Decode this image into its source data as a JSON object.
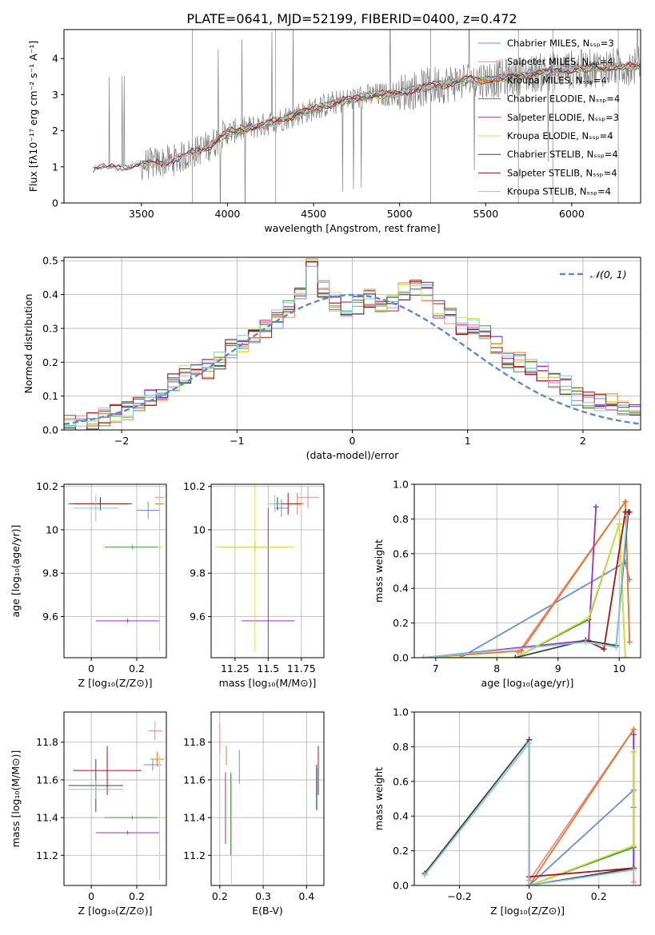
{
  "figure": {
    "title": "PLATE=0641, MJD=52199, FIBERID=0400, z=0.472"
  },
  "colors": {
    "chabrier_miles": "#6a8fd8",
    "salpeter_miles": "#f08888",
    "kroupa_miles": "#e07b2e",
    "chabrier_elodie": "#3f9a3f",
    "salpeter_elodie": "#9b2fc0",
    "kroupa_elodie": "#d6e04a",
    "chabrier_stelib": "#404040",
    "salpeter_stelib": "#a81414",
    "kroupa_stelib": "#86c9d8",
    "data": "#808080",
    "normal": "#5b88cf"
  },
  "chart_data": [
    {
      "id": "spectrum",
      "type": "line",
      "xlabel": "wavelength [Angstrom, rest frame]",
      "ylabel": "Flux [fλ10⁻¹⁷ erg cm⁻² s⁻¹ A⁻¹]",
      "xlim": [
        3050,
        6400
      ],
      "ylim": [
        0,
        4.8
      ],
      "xticks": [
        3500,
        4000,
        4500,
        5000,
        5500,
        6000
      ],
      "yticks": [
        0,
        1,
        2,
        3,
        4
      ],
      "legend_position": "top-right",
      "legend": [
        {
          "label": "Chabrier MILES, Nₛₛₚ=3",
          "color": "#6a8fd8"
        },
        {
          "label": "Salpeter MILES, Nₛₛₚ=4",
          "color": "#f08888"
        },
        {
          "label": "Kroupa MILES, Nₛₛₚ=4",
          "color": "#e07b2e"
        },
        {
          "label": "Chabrier ELODIE, Nₛₛₚ=4",
          "color": "#3f9a3f"
        },
        {
          "label": "Salpeter ELODIE, Nₛₛₚ=3",
          "color": "#9b2fc0"
        },
        {
          "label": "Kroupa ELODIE, Nₛₛₚ=4",
          "color": "#d6e04a"
        },
        {
          "label": "Chabrier STELIB, Nₛₛₚ=4",
          "color": "#404040"
        },
        {
          "label": "Salpeter STELIB, Nₛₛₚ=4",
          "color": "#a81414"
        },
        {
          "label": "Kroupa STELIB, Nₛₛₚ=4",
          "color": "#86c9d8"
        }
      ],
      "continuum": [
        [
          3220,
          0.95
        ],
        [
          3350,
          1.0
        ],
        [
          3500,
          1.05
        ],
        [
          3700,
          1.2
        ],
        [
          3900,
          1.6
        ],
        [
          4000,
          1.95
        ],
        [
          4200,
          2.15
        ],
        [
          4400,
          2.45
        ],
        [
          4600,
          2.75
        ],
        [
          4800,
          2.95
        ],
        [
          5000,
          3.05
        ],
        [
          5200,
          3.25
        ],
        [
          5400,
          3.4
        ],
        [
          5600,
          3.45
        ],
        [
          5800,
          3.6
        ],
        [
          6000,
          3.7
        ],
        [
          6200,
          3.75
        ],
        [
          6400,
          3.8
        ]
      ]
    },
    {
      "id": "residuals",
      "type": "step",
      "xlabel": "(data-model)/error",
      "ylabel": "Normed distribution",
      "xlim": [
        -2.5,
        2.5
      ],
      "ylim": [
        0,
        0.51
      ],
      "xticks": [
        -2,
        -1,
        0,
        1,
        2
      ],
      "yticks": [
        0.0,
        0.1,
        0.2,
        0.3,
        0.4,
        0.5
      ],
      "legend_position": "top-right",
      "legend": [
        {
          "label": "𝒩(0, 1)",
          "color": "#5b88cf"
        }
      ],
      "bin_width": 0.1,
      "hist_base": [
        0.02,
        0.02,
        0.03,
        0.04,
        0.05,
        0.06,
        0.07,
        0.09,
        0.11,
        0.14,
        0.16,
        0.18,
        0.18,
        0.21,
        0.24,
        0.26,
        0.27,
        0.3,
        0.33,
        0.36,
        0.4,
        0.48,
        0.42,
        0.38,
        0.35,
        0.37,
        0.39,
        0.36,
        0.38,
        0.41,
        0.42,
        0.41,
        0.36,
        0.34,
        0.31,
        0.3,
        0.28,
        0.25,
        0.21,
        0.2,
        0.18,
        0.17,
        0.15,
        0.13,
        0.1,
        0.09,
        0.08,
        0.08,
        0.06,
        0.05
      ]
    },
    {
      "id": "age_vs_z",
      "type": "errorbar",
      "xlabel": "Z [log₁₀(Z/Z⊙)]",
      "ylabel": "age  [log₁₀(age/yr)]",
      "xlim": [
        -0.12,
        0.33
      ],
      "ylim": [
        9.41,
        10.21
      ],
      "xticks": [
        0.0,
        0.2
      ],
      "yticks": [
        9.6,
        9.8,
        10.0,
        10.2
      ],
      "points": [
        {
          "model": "chabrier_miles",
          "x": 0.25,
          "y": 10.09,
          "xerr": 0.05,
          "yerr": 0.04
        },
        {
          "model": "salpeter_miles",
          "x": 0.3,
          "y": 10.15,
          "xerr": 0.02,
          "yerr": 0.03
        },
        {
          "model": "kroupa_miles",
          "x": 0.3,
          "y": 10.12,
          "xerr": 0.02,
          "yerr": 0.05
        },
        {
          "model": "chabrier_elodie",
          "x": 0.18,
          "y": 9.92,
          "xerr": 0.12,
          "yerr": 0.01
        },
        {
          "model": "salpeter_elodie",
          "x": 0.16,
          "y": 9.58,
          "xerr": 0.14,
          "yerr": 0.01
        },
        {
          "model": "kroupa_elodie",
          "x": 0.3,
          "y": 9.92,
          "xerr": 0.01,
          "yerr": 0.48
        },
        {
          "model": "chabrier_stelib",
          "x": 0.04,
          "y": 10.12,
          "xerr": 0.14,
          "yerr": 0.03
        },
        {
          "model": "salpeter_stelib",
          "x": 0.04,
          "y": 10.12,
          "xerr": 0.12,
          "yerr": 0.03
        },
        {
          "model": "kroupa_stelib",
          "x": 0.02,
          "y": 10.1,
          "xerr": 0.1,
          "yerr": 0.06
        }
      ]
    },
    {
      "id": "age_vs_mass",
      "type": "errorbar",
      "xlabel": "mass [log₁₀(M/M⊙)]",
      "ylabel": "",
      "xlim": [
        11.07,
        11.92
      ],
      "ylim": [
        9.41,
        10.21
      ],
      "xticks": [
        11.25,
        11.5,
        11.75
      ],
      "yticks": [
        9.6,
        9.8,
        10.0,
        10.2
      ],
      "points": [
        {
          "model": "chabrier_miles",
          "x": 11.6,
          "y": 10.1,
          "xerr": 0.05,
          "yerr": 0.04
        },
        {
          "model": "salpeter_miles",
          "x": 11.8,
          "y": 10.15,
          "xerr": 0.08,
          "yerr": 0.05
        },
        {
          "model": "kroupa_miles",
          "x": 11.72,
          "y": 10.12,
          "xerr": 0.05,
          "yerr": 0.05
        },
        {
          "model": "chabrier_elodie",
          "x": 11.4,
          "y": 9.92,
          "xerr": 0.25,
          "yerr": 0.02
        },
        {
          "model": "salpeter_elodie",
          "x": 11.5,
          "y": 9.58,
          "xerr": 0.2,
          "yerr": 0.52
        },
        {
          "model": "kroupa_elodie",
          "x": 11.4,
          "y": 9.92,
          "xerr": 0.3,
          "yerr": 0.48
        },
        {
          "model": "chabrier_stelib",
          "x": 11.57,
          "y": 10.12,
          "xerr": 0.03,
          "yerr": 0.03
        },
        {
          "model": "salpeter_stelib",
          "x": 11.65,
          "y": 10.12,
          "xerr": 0.1,
          "yerr": 0.05
        },
        {
          "model": "kroupa_stelib",
          "x": 11.55,
          "y": 10.12,
          "xerr": 0.05,
          "yerr": 0.04
        }
      ]
    },
    {
      "id": "massweight_vs_age",
      "type": "line",
      "xlabel": "age  [log₁₀(age/yr)]",
      "ylabel": "mass weight",
      "xlim": [
        6.65,
        10.35
      ],
      "ylim": [
        0.0,
        1.0
      ],
      "xticks": [
        7,
        8,
        9,
        10
      ],
      "yticks": [
        0.0,
        0.2,
        0.4,
        0.6,
        0.8,
        1.0
      ],
      "series": [
        {
          "model": "chabrier_miles",
          "x": [
            7.4,
            10.1,
            10.17
          ],
          "y": [
            0.0,
            0.55,
            0.45
          ]
        },
        {
          "model": "salpeter_miles",
          "x": [
            8.35,
            10.1,
            10.17
          ],
          "y": [
            0.03,
            0.9,
            0.09
          ]
        },
        {
          "model": "kroupa_miles",
          "x": [
            6.8,
            8.4,
            10.1,
            10.17
          ],
          "y": [
            0.0,
            0.04,
            0.9,
            0.09
          ]
        },
        {
          "model": "chabrier_elodie",
          "x": [
            6.8,
            8.3,
            9.5,
            10.0,
            10.1
          ],
          "y": [
            0.0,
            0.0,
            0.22,
            0.77,
            0.0
          ]
        },
        {
          "model": "salpeter_elodie",
          "x": [
            6.8,
            9.5,
            9.62
          ],
          "y": [
            0.0,
            0.1,
            0.87
          ]
        },
        {
          "model": "kroupa_elodie",
          "x": [
            6.8,
            8.3,
            9.5,
            10.0,
            10.1
          ],
          "y": [
            0.0,
            0.0,
            0.23,
            0.77,
            0.0
          ]
        },
        {
          "model": "chabrier_stelib",
          "x": [
            8.3,
            9.45,
            9.95,
            10.15
          ],
          "y": [
            0.0,
            0.1,
            0.07,
            0.84
          ]
        },
        {
          "model": "salpeter_stelib",
          "x": [
            9.45,
            9.75,
            10.1,
            10.17
          ],
          "y": [
            0.1,
            0.05,
            0.84,
            0.84
          ]
        },
        {
          "model": "kroupa_stelib",
          "x": [
            6.8,
            9.45,
            9.95,
            10.13
          ],
          "y": [
            0.0,
            0.09,
            0.06,
            0.82
          ]
        }
      ]
    },
    {
      "id": "mass_vs_z",
      "type": "errorbar",
      "xlabel": "Z [log₁₀(Z/Z⊙)]",
      "ylabel": "mass [log₁₀(M/M⊙)]",
      "xlim": [
        -0.12,
        0.33
      ],
      "ylim": [
        11.04,
        11.96
      ],
      "xticks": [
        0.0,
        0.2
      ],
      "yticks": [
        11.2,
        11.4,
        11.6,
        11.8
      ],
      "points": [
        {
          "model": "chabrier_miles",
          "x": 0.27,
          "y": 11.68,
          "xerr": 0.04,
          "yerr": 0.03
        },
        {
          "model": "salpeter_miles",
          "x": 0.28,
          "y": 11.86,
          "xerr": 0.03,
          "yerr": 0.05
        },
        {
          "model": "kroupa_miles",
          "x": 0.29,
          "y": 11.71,
          "xerr": 0.03,
          "yerr": 0.04
        },
        {
          "model": "chabrier_elodie",
          "x": 0.18,
          "y": 11.4,
          "xerr": 0.12,
          "yerr": 0.01
        },
        {
          "model": "salpeter_elodie",
          "x": 0.16,
          "y": 11.32,
          "xerr": 0.14,
          "yerr": 0.01
        },
        {
          "model": "kroupa_elodie",
          "x": 0.3,
          "y": 11.4,
          "xerr": 0.01,
          "yerr": 0.33
        },
        {
          "model": "chabrier_stelib",
          "x": 0.02,
          "y": 11.57,
          "xerr": 0.12,
          "yerr": 0.14
        },
        {
          "model": "salpeter_stelib",
          "x": 0.07,
          "y": 11.65,
          "xerr": 0.15,
          "yerr": 0.13
        },
        {
          "model": "kroupa_stelib",
          "x": 0.02,
          "y": 11.55,
          "xerr": 0.12,
          "yerr": 0.05
        }
      ]
    },
    {
      "id": "mass_vs_ebv",
      "type": "errorbar",
      "xlabel": "E(B-V)",
      "ylabel": "",
      "xlim": [
        0.18,
        0.44
      ],
      "ylim": [
        11.04,
        11.96
      ],
      "xticks": [
        0.2,
        0.3,
        0.4
      ],
      "yticks": [
        11.2,
        11.4,
        11.6,
        11.8
      ],
      "points": [
        {
          "model": "chabrier_miles",
          "x": 0.245,
          "y": 11.67,
          "xerr": 0.0,
          "yerr": 0.09
        },
        {
          "model": "salpeter_miles",
          "x": 0.2,
          "y": 11.82,
          "xerr": 0.0,
          "yerr": 0.08
        },
        {
          "model": "kroupa_miles",
          "x": 0.215,
          "y": 11.73,
          "xerr": 0.0,
          "yerr": 0.05
        },
        {
          "model": "chabrier_elodie",
          "x": 0.225,
          "y": 11.42,
          "xerr": 0.0,
          "yerr": 0.22
        },
        {
          "model": "salpeter_elodie",
          "x": 0.213,
          "y": 11.45,
          "xerr": 0.0,
          "yerr": 0.19
        },
        {
          "model": "kroupa_elodie",
          "x": 0.227,
          "y": 11.34,
          "xerr": 0.0,
          "yerr": 0.29
        },
        {
          "model": "chabrier_stelib",
          "x": 0.423,
          "y": 11.56,
          "xerr": 0.0,
          "yerr": 0.12
        },
        {
          "model": "salpeter_stelib",
          "x": 0.427,
          "y": 11.65,
          "xerr": 0.0,
          "yerr": 0.13
        },
        {
          "model": "kroupa_stelib",
          "x": 0.425,
          "y": 11.55,
          "xerr": 0.0,
          "yerr": 0.11
        }
      ]
    },
    {
      "id": "massweight_vs_z",
      "type": "line",
      "xlabel": "Z [log₁₀(Z/Z⊙)]",
      "ylabel": "mass weight",
      "xlim": [
        -0.33,
        0.32
      ],
      "ylim": [
        0.0,
        1.0
      ],
      "xticks": [
        -0.2,
        0.0,
        0.2
      ],
      "yticks": [
        0.0,
        0.2,
        0.4,
        0.6,
        0.8,
        1.0
      ],
      "series": [
        {
          "model": "chabrier_miles",
          "x": [
            0.0,
            0.3,
            0.3
          ],
          "y": [
            0.0,
            0.55,
            0.45
          ]
        },
        {
          "model": "salpeter_miles",
          "x": [
            0.0,
            0.3,
            0.3
          ],
          "y": [
            0.03,
            0.9,
            0.02
          ]
        },
        {
          "model": "kroupa_miles",
          "x": [
            0.0,
            0.3,
            0.3
          ],
          "y": [
            0.0,
            0.9,
            0.09
          ]
        },
        {
          "model": "chabrier_elodie",
          "x": [
            0.0,
            0.3,
            0.3
          ],
          "y": [
            0.0,
            0.22,
            0.77
          ]
        },
        {
          "model": "salpeter_elodie",
          "x": [
            0.0,
            0.3,
            0.3
          ],
          "y": [
            0.0,
            0.1,
            0.87
          ]
        },
        {
          "model": "kroupa_elodie",
          "x": [
            0.0,
            0.3,
            0.3
          ],
          "y": [
            0.0,
            0.23,
            0.77
          ]
        },
        {
          "model": "chabrier_stelib",
          "x": [
            -0.3,
            0.0,
            0.0,
            0.3
          ],
          "y": [
            0.07,
            0.84,
            0.0,
            0.1
          ]
        },
        {
          "model": "salpeter_stelib",
          "x": [
            0.0,
            0.0,
            0.3
          ],
          "y": [
            0.84,
            0.05,
            0.1
          ]
        },
        {
          "model": "kroupa_stelib",
          "x": [
            -0.3,
            0.0,
            0.0,
            0.3
          ],
          "y": [
            0.06,
            0.82,
            0.0,
            0.09
          ]
        }
      ]
    }
  ]
}
